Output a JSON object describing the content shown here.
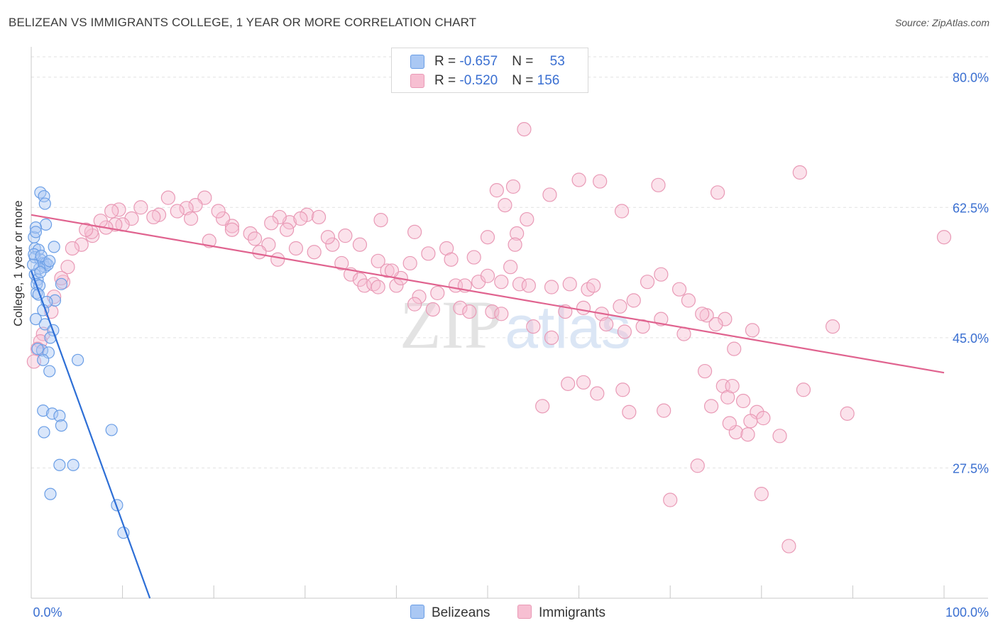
{
  "title": "BELIZEAN VS IMMIGRANTS COLLEGE, 1 YEAR OR MORE CORRELATION CHART",
  "source": "Source: ZipAtlas.com",
  "watermark": {
    "zip": "ZIP",
    "atlas": "atlas"
  },
  "colors": {
    "belizeans_fill": "#aac8f4",
    "belizeans_stroke": "#6a9ee6",
    "belizeans_line": "#2e6fd6",
    "immigrants_fill": "#f7bfd2",
    "immigrants_stroke": "#e99ab6",
    "immigrants_line": "#e0638f",
    "axis_text": "#3a6fd1",
    "grid": "#e2e2e2"
  },
  "legend": {
    "rows": [
      {
        "r_label": "R = ",
        "r_value": "-0.657",
        "n_label": "N = ",
        "n_value": "53"
      },
      {
        "r_label": "R = ",
        "r_value": "-0.520",
        "n_label": "N = ",
        "n_value": "156"
      }
    ],
    "series": [
      "Belizeans",
      "Immigrants"
    ]
  },
  "chart_data": {
    "type": "scatter",
    "title": "BELIZEAN VS IMMIGRANTS COLLEGE, 1 YEAR OR MORE CORRELATION CHART",
    "xlabel": "",
    "ylabel": "College, 1 year or more",
    "xlim": [
      0,
      100
    ],
    "ylim": [
      10,
      83.5
    ],
    "x_tick_labels": [
      "0.0%",
      "100.0%"
    ],
    "y_ticks": [
      27.5,
      45.0,
      62.5,
      80.0
    ],
    "y_tick_labels": [
      "27.5%",
      "45.0%",
      "62.5%",
      "80.0%"
    ],
    "grid": true,
    "legend_position": "top-center",
    "series": [
      {
        "name": "Belizeans",
        "trend": {
          "x": [
            0,
            13.0
          ],
          "y": [
            54.0,
            10.0
          ]
        },
        "points": [
          [
            0.3,
            58.5
          ],
          [
            1.0,
            64.5
          ],
          [
            1.4,
            64.0
          ],
          [
            1.5,
            63.0
          ],
          [
            1.6,
            60.2
          ],
          [
            0.5,
            59.8
          ],
          [
            0.5,
            59.2
          ],
          [
            0.4,
            57.0
          ],
          [
            0.8,
            56.8
          ],
          [
            2.5,
            57.2
          ],
          [
            0.4,
            55.8
          ],
          [
            1.0,
            55.5
          ],
          [
            1.3,
            55.0
          ],
          [
            1.5,
            54.5
          ],
          [
            1.6,
            55.0
          ],
          [
            1.8,
            54.8
          ],
          [
            0.9,
            54.3
          ],
          [
            0.4,
            53.5
          ],
          [
            0.7,
            52.8
          ],
          [
            0.6,
            52.2
          ],
          [
            0.9,
            52.0
          ],
          [
            3.3,
            52.2
          ],
          [
            0.6,
            51.0
          ],
          [
            0.8,
            50.8
          ],
          [
            2.6,
            50.0
          ],
          [
            1.7,
            49.8
          ],
          [
            1.3,
            48.7
          ],
          [
            0.5,
            47.5
          ],
          [
            1.5,
            46.8
          ],
          [
            2.4,
            46.0
          ],
          [
            2.1,
            45.0
          ],
          [
            1.2,
            43.3
          ],
          [
            0.7,
            43.5
          ],
          [
            1.9,
            43.0
          ],
          [
            1.3,
            42.0
          ],
          [
            5.1,
            42.0
          ],
          [
            2.0,
            40.5
          ],
          [
            1.3,
            35.2
          ],
          [
            2.3,
            34.8
          ],
          [
            3.1,
            34.5
          ],
          [
            3.3,
            33.2
          ],
          [
            1.4,
            32.3
          ],
          [
            8.8,
            32.6
          ],
          [
            3.1,
            27.9
          ],
          [
            4.6,
            27.9
          ],
          [
            2.1,
            24.0
          ],
          [
            9.4,
            22.5
          ],
          [
            10.1,
            18.8
          ],
          [
            0.3,
            56.2
          ],
          [
            1.1,
            56.0
          ],
          [
            0.2,
            54.8
          ],
          [
            1.0,
            53.8
          ],
          [
            2.0,
            55.3
          ]
        ]
      },
      {
        "name": "Immigrants",
        "trend": {
          "x": [
            0,
            100
          ],
          "y": [
            61.5,
            40.3
          ]
        },
        "points": [
          [
            54.0,
            73.0
          ],
          [
            84.2,
            67.2
          ],
          [
            60.0,
            66.2
          ],
          [
            62.3,
            66.0
          ],
          [
            68.7,
            65.5
          ],
          [
            52.8,
            65.3
          ],
          [
            51.0,
            64.8
          ],
          [
            56.8,
            64.2
          ],
          [
            75.2,
            64.5
          ],
          [
            64.7,
            62.0
          ],
          [
            51.9,
            62.8
          ],
          [
            54.3,
            60.9
          ],
          [
            53.2,
            59.0
          ],
          [
            50.0,
            58.5
          ],
          [
            42.0,
            59.2
          ],
          [
            34.4,
            58.7
          ],
          [
            38.3,
            60.8
          ],
          [
            30.2,
            61.5
          ],
          [
            28.3,
            60.5
          ],
          [
            27.2,
            61.2
          ],
          [
            26.3,
            60.4
          ],
          [
            24.0,
            59.0
          ],
          [
            22.0,
            60.0
          ],
          [
            21.0,
            61.0
          ],
          [
            20.5,
            62.0
          ],
          [
            19.0,
            63.8
          ],
          [
            18.0,
            62.8
          ],
          [
            17.0,
            62.4
          ],
          [
            15.0,
            63.8
          ],
          [
            14.0,
            61.5
          ],
          [
            13.4,
            61.2
          ],
          [
            12.0,
            62.5
          ],
          [
            11.0,
            61.0
          ],
          [
            10.0,
            60.2
          ],
          [
            9.6,
            62.2
          ],
          [
            9.2,
            60.2
          ],
          [
            8.8,
            62.0
          ],
          [
            8.2,
            59.8
          ],
          [
            7.6,
            60.7
          ],
          [
            6.7,
            58.7
          ],
          [
            6.6,
            59.2
          ],
          [
            6.0,
            59.5
          ],
          [
            5.5,
            57.5
          ],
          [
            4.5,
            57.0
          ],
          [
            4.0,
            54.5
          ],
          [
            3.5,
            52.5
          ],
          [
            3.3,
            53.0
          ],
          [
            2.5,
            50.5
          ],
          [
            2.2,
            48.5
          ],
          [
            1.3,
            45.5
          ],
          [
            1.0,
            44.5
          ],
          [
            0.7,
            43.5
          ],
          [
            0.3,
            41.8
          ],
          [
            16.0,
            62.0
          ],
          [
            17.5,
            61.0
          ],
          [
            19.5,
            58.0
          ],
          [
            22.0,
            59.5
          ],
          [
            24.5,
            58.3
          ],
          [
            26.0,
            57.5
          ],
          [
            28.0,
            59.5
          ],
          [
            29.5,
            61.0
          ],
          [
            31.5,
            61.2
          ],
          [
            33.0,
            57.5
          ],
          [
            34.0,
            55.0
          ],
          [
            35.0,
            53.5
          ],
          [
            36.0,
            52.8
          ],
          [
            36.5,
            52.0
          ],
          [
            37.5,
            52.2
          ],
          [
            38.0,
            55.3
          ],
          [
            39.0,
            54.0
          ],
          [
            40.0,
            52.0
          ],
          [
            40.5,
            53.0
          ],
          [
            41.5,
            55.0
          ],
          [
            42.5,
            50.5
          ],
          [
            43.5,
            56.3
          ],
          [
            44.5,
            51.0
          ],
          [
            45.5,
            57.0
          ],
          [
            46.5,
            52.0
          ],
          [
            47.0,
            49.0
          ],
          [
            48.0,
            48.5
          ],
          [
            49.0,
            52.5
          ],
          [
            50.5,
            48.5
          ],
          [
            51.5,
            52.5
          ],
          [
            52.5,
            54.5
          ],
          [
            53.5,
            52.2
          ],
          [
            55.0,
            46.5
          ],
          [
            57.0,
            45.0
          ],
          [
            58.5,
            48.5
          ],
          [
            60.5,
            49.0
          ],
          [
            62.5,
            48.2
          ],
          [
            64.5,
            49.2
          ],
          [
            66.0,
            50.0
          ],
          [
            67.5,
            52.5
          ],
          [
            69.0,
            53.5
          ],
          [
            71.0,
            51.5
          ],
          [
            72.0,
            50.0
          ],
          [
            74.0,
            48.0
          ],
          [
            76.0,
            47.5
          ],
          [
            25.0,
            56.5
          ],
          [
            27.0,
            55.5
          ],
          [
            29.0,
            57.0
          ],
          [
            31.0,
            56.5
          ],
          [
            32.5,
            58.5
          ],
          [
            36.0,
            57.5
          ],
          [
            38.0,
            51.8
          ],
          [
            39.5,
            54.0
          ],
          [
            42.0,
            49.5
          ],
          [
            44.0,
            48.8
          ],
          [
            46.0,
            55.5
          ],
          [
            47.5,
            52.0
          ],
          [
            48.5,
            55.8
          ],
          [
            50.0,
            53.3
          ],
          [
            51.5,
            48.2
          ],
          [
            53.0,
            57.5
          ],
          [
            54.5,
            52.0
          ],
          [
            57.0,
            51.8
          ],
          [
            59.0,
            52.2
          ],
          [
            61.0,
            51.5
          ],
          [
            63.0,
            46.8
          ],
          [
            65.0,
            45.8
          ],
          [
            67.0,
            46.5
          ],
          [
            69.0,
            47.5
          ],
          [
            71.5,
            45.5
          ],
          [
            73.5,
            48.2
          ],
          [
            75.0,
            46.8
          ],
          [
            77.0,
            43.5
          ],
          [
            79.0,
            46.0
          ],
          [
            87.8,
            46.5
          ],
          [
            60.5,
            39.0
          ],
          [
            62.0,
            37.5
          ],
          [
            64.8,
            38.0
          ],
          [
            69.3,
            35.2
          ],
          [
            73.8,
            40.5
          ],
          [
            75.8,
            38.5
          ],
          [
            76.3,
            37.0
          ],
          [
            77.2,
            32.3
          ],
          [
            78.5,
            32.0
          ],
          [
            82.0,
            31.8
          ],
          [
            84.6,
            38.0
          ],
          [
            89.4,
            34.8
          ],
          [
            73.0,
            27.8
          ],
          [
            70.0,
            23.2
          ],
          [
            74.5,
            35.8
          ],
          [
            76.8,
            38.5
          ],
          [
            79.5,
            35.0
          ],
          [
            80.2,
            34.2
          ],
          [
            76.5,
            33.5
          ],
          [
            78.0,
            36.5
          ],
          [
            78.8,
            33.8
          ],
          [
            80.0,
            24.0
          ],
          [
            83.0,
            17.0
          ],
          [
            56.0,
            35.8
          ],
          [
            100.0,
            58.5
          ],
          [
            58.8,
            38.8
          ],
          [
            65.5,
            35.0
          ],
          [
            61.6,
            52.0
          ]
        ]
      }
    ]
  }
}
